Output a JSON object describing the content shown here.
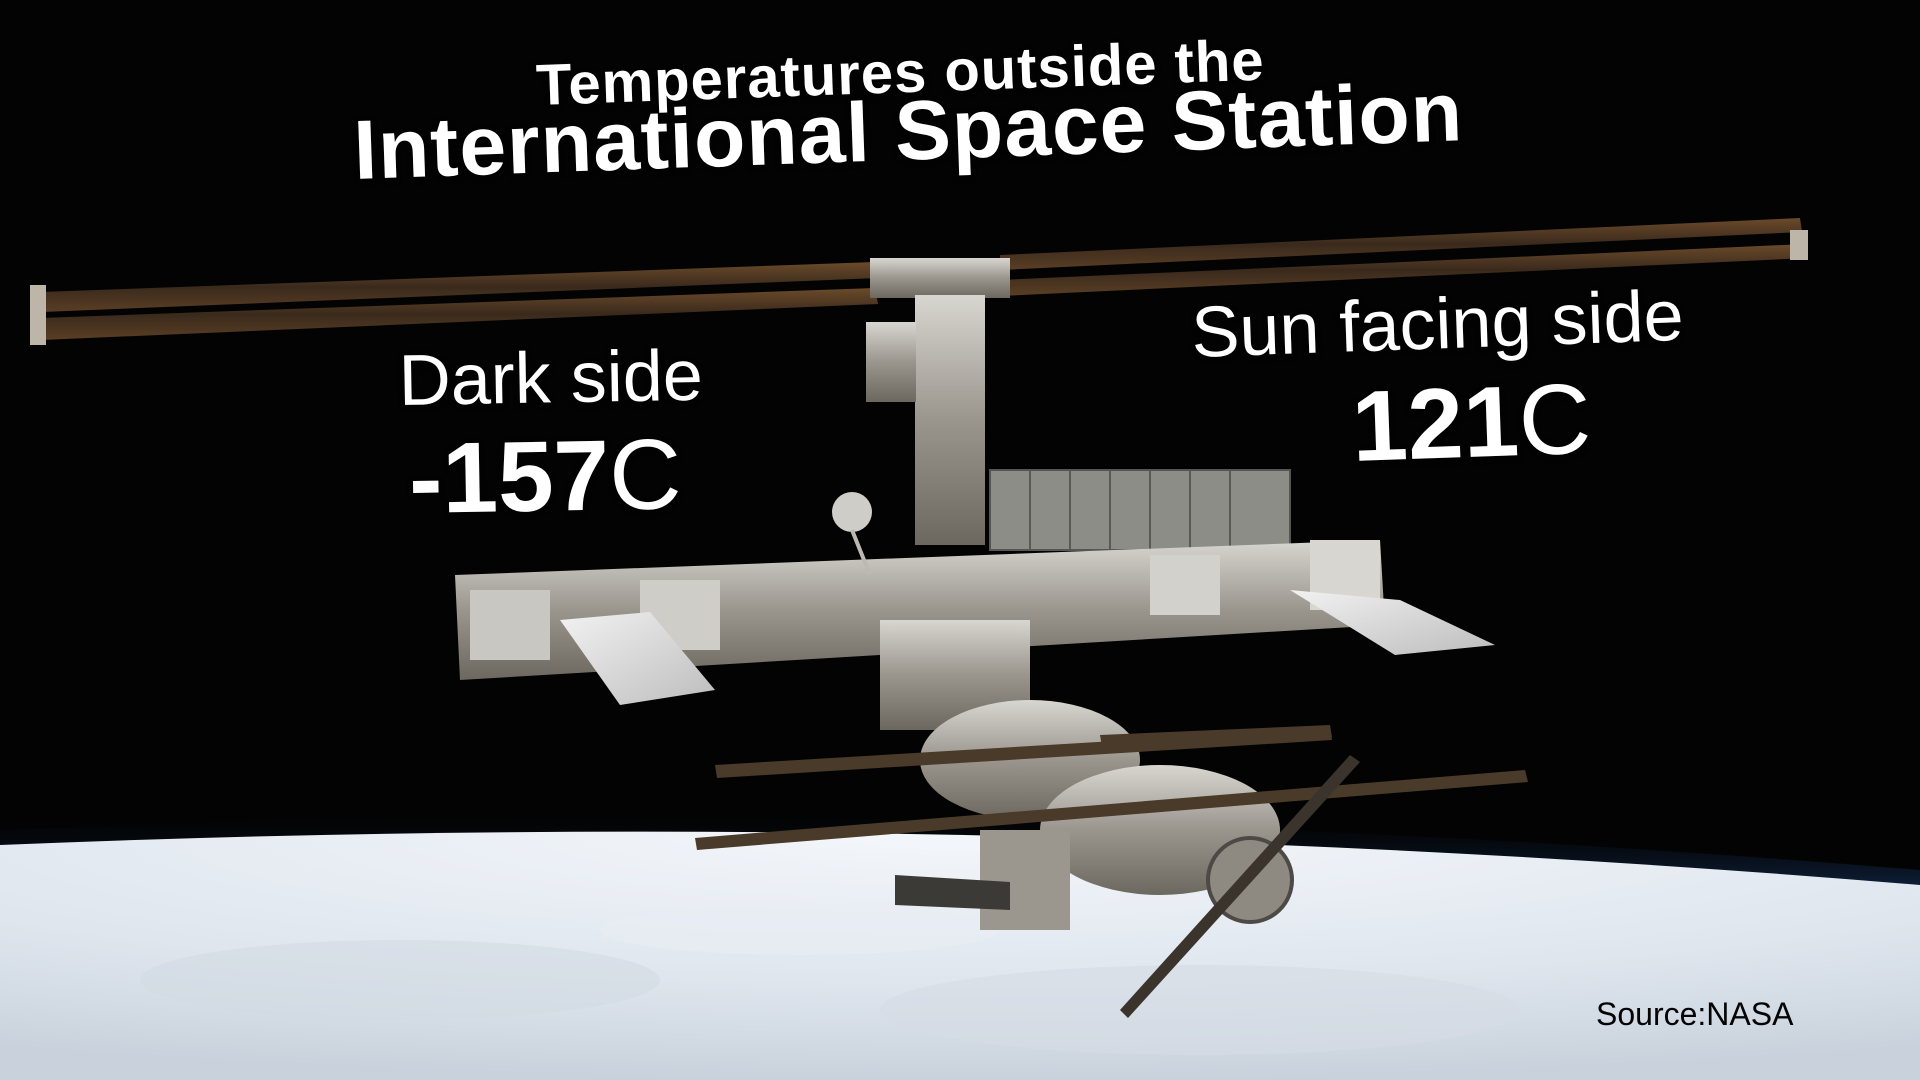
{
  "title": {
    "line1": "Temperatures outside the",
    "line2": "International Space Station"
  },
  "dark_side": {
    "label": "Dark side",
    "value": "-157",
    "unit": "C"
  },
  "sun_side": {
    "label": "Sun facing side",
    "value": "121",
    "unit": "C"
  },
  "source": "Source:NASA",
  "colors": {
    "space": "#030303",
    "earth_cloud": "#eef2f7",
    "atmosphere": "#3b7fd6",
    "text": "#ffffff",
    "source_text": "#050505"
  }
}
